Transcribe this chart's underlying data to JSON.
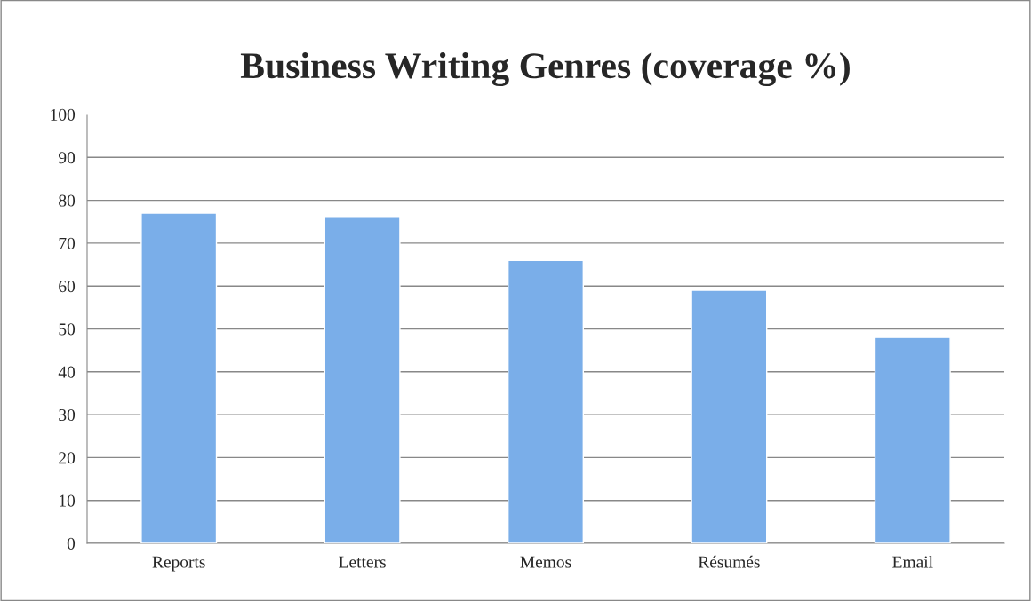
{
  "chart_data": {
    "type": "bar",
    "title": "Business Writing Genres (coverage %)",
    "categories": [
      "Reports",
      "Letters",
      "Memos",
      "Résumés",
      "Email"
    ],
    "values": [
      77,
      76,
      66,
      59,
      48
    ],
    "color": "#7aaee9",
    "ylim": [
      0,
      100
    ],
    "yticks": [
      0,
      10,
      20,
      30,
      40,
      50,
      60,
      70,
      80,
      90,
      100
    ],
    "grid": "y",
    "legend": false
  }
}
